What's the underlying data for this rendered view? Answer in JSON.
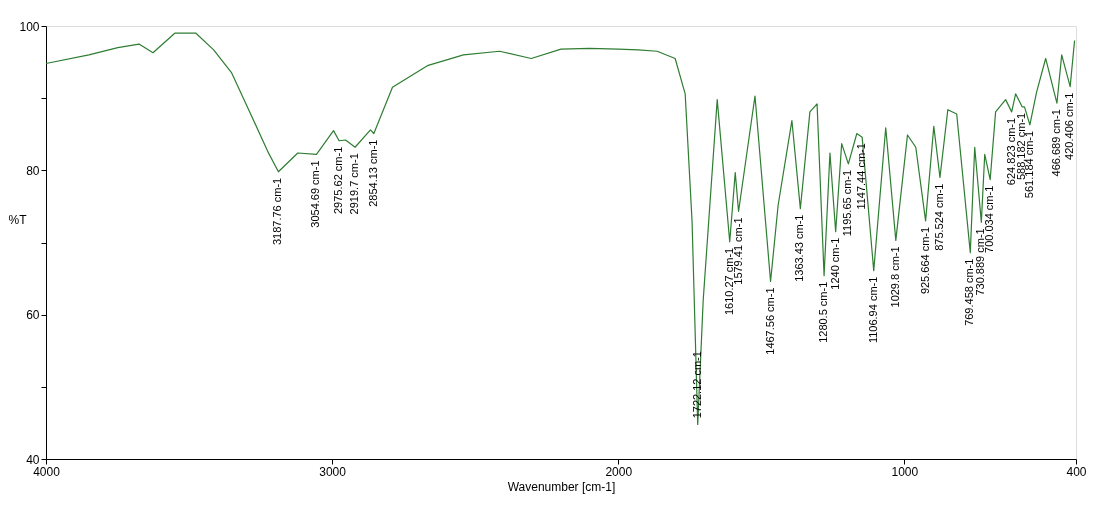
{
  "chart_data": {
    "type": "line",
    "xlabel": "Wavenumber [cm-1]",
    "ylabel": "%T",
    "xlim": [
      4000,
      400
    ],
    "xticks": [
      4000,
      3000,
      2000,
      1000,
      400
    ],
    "ylim": [
      40,
      100
    ],
    "yticks": [
      40,
      {
        "value": 50,
        "label": null
      },
      60,
      {
        "value": 70,
        "label": null
      },
      80,
      {
        "value": 90,
        "label": null
      },
      100
    ],
    "grid": false,
    "marker": "none",
    "line_style": "solid",
    "series": [
      {
        "color": "#2e7d32",
        "x": [
          4000,
          3850,
          3749,
          3675,
          3626,
          3550,
          3476,
          3414,
          3351,
          3288,
          3226,
          3187.76,
          3120,
          3054.69,
          2995,
          2975.62,
          2953,
          2919.7,
          2866,
          2854.13,
          2789,
          2667,
          2541,
          2415,
          2304,
          2200,
          2100,
          2000,
          1930,
          1864,
          1801,
          1766,
          1742,
          1722.12,
          1703,
          1654,
          1610.27,
          1591,
          1579.41,
          1522,
          1467.56,
          1441,
          1393,
          1363.43,
          1330,
          1305,
          1280.5,
          1260,
          1240,
          1219,
          1195.65,
          1166,
          1147.44,
          1106.94,
          1065,
          1029.8,
          989,
          960,
          925.664,
          897,
          875.524,
          848,
          817,
          769.458,
          754,
          730.889,
          719,
          700.034,
          681,
          646,
          624.823,
          611,
          588.182,
          580,
          561.184,
          538,
          506,
          466.689,
          450,
          420.406,
          405
        ],
        "values": [
          94.8,
          96.0,
          97.0,
          97.5,
          96.3,
          99.0,
          99.0,
          96.7,
          93.5,
          88.1,
          82.7,
          79.8,
          82.4,
          82.2,
          85.5,
          84.1,
          84.2,
          83.2,
          85.6,
          85.1,
          91.5,
          94.5,
          96.0,
          96.5,
          95.5,
          96.8,
          96.9,
          96.8,
          96.7,
          96.5,
          95.5,
          90.6,
          73.0,
          44.8,
          62.0,
          89.8,
          70.1,
          79.7,
          74.3,
          90.3,
          64.6,
          75.2,
          86.9,
          74.7,
          88.1,
          89.2,
          65.4,
          82.4,
          71.5,
          83.7,
          80.9,
          85.1,
          84.6,
          66.1,
          85.9,
          70.3,
          84.9,
          83.2,
          73.0,
          86.1,
          79.0,
          88.4,
          87.8,
          68.6,
          83.2,
          72.8,
          82.2,
          78.7,
          88.1,
          89.8,
          88.1,
          90.6,
          88.8,
          88.8,
          86.3,
          90.8,
          95.5,
          89.3,
          96.0,
          91.6,
          98.0
        ]
      }
    ],
    "annotations": [
      {
        "text": "3187.76 cm-1",
        "x": 3187.76,
        "y": 79.8
      },
      {
        "text": "3054.69 cm-1",
        "x": 3054.69,
        "y": 82.2
      },
      {
        "text": "2975.62 cm-1",
        "x": 2975.62,
        "y": 84.1
      },
      {
        "text": "2919.7 cm-1",
        "x": 2919.7,
        "y": 83.2
      },
      {
        "text": "2854.13 cm-1",
        "x": 2854.13,
        "y": 85.1
      },
      {
        "text": "1722.12 cm-1",
        "x": 1722.12,
        "y": 44.8
      },
      {
        "text": "1610.27 cm-1",
        "x": 1610.27,
        "y": 70.1
      },
      {
        "text": "1579.41 cm-1",
        "x": 1579.41,
        "y": 74.3
      },
      {
        "text": "1467.56 cm-1",
        "x": 1467.56,
        "y": 64.6
      },
      {
        "text": "1363.43 cm-1",
        "x": 1363.43,
        "y": 74.7
      },
      {
        "text": "1280.5 cm-1",
        "x": 1280.5,
        "y": 65.4
      },
      {
        "text": "1240 cm-1",
        "x": 1240,
        "y": 71.5
      },
      {
        "text": "1195.65 cm-1",
        "x": 1195.65,
        "y": 80.9
      },
      {
        "text": "1147.44 cm-1",
        "x": 1147.44,
        "y": 84.6
      },
      {
        "text": "1106.94 cm-1",
        "x": 1106.94,
        "y": 66.1
      },
      {
        "text": "1029.8 cm-1",
        "x": 1029.8,
        "y": 70.3
      },
      {
        "text": "925.664 cm-1",
        "x": 925.664,
        "y": 73.0
      },
      {
        "text": "875.524 cm-1",
        "x": 875.524,
        "y": 79.0
      },
      {
        "text": "769.458 cm-1",
        "x": 769.458,
        "y": 68.6
      },
      {
        "text": "730.889 cm-1",
        "x": 730.889,
        "y": 72.8
      },
      {
        "text": "700.034 cm-1",
        "x": 700.034,
        "y": 78.7
      },
      {
        "text": "624.823 cm-1",
        "x": 624.823,
        "y": 88.1
      },
      {
        "text": "588.182 cm-1",
        "x": 588.182,
        "y": 88.8
      },
      {
        "text": "561.184 cm-1",
        "x": 561.184,
        "y": 86.3
      },
      {
        "text": "466.689 cm-1",
        "x": 466.689,
        "y": 89.3
      },
      {
        "text": "420.406 cm-1",
        "x": 420.406,
        "y": 91.6
      }
    ]
  }
}
